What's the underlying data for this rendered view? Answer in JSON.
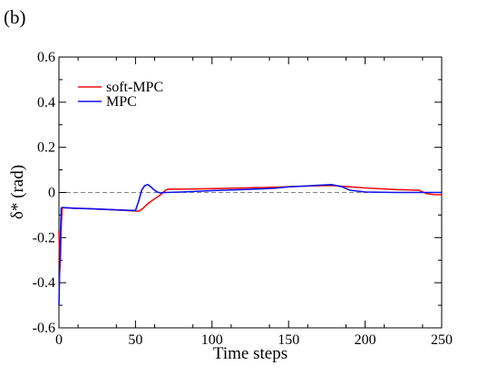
{
  "panel_label": "(b)",
  "chart_data": {
    "type": "line",
    "title": "",
    "xlabel": "Time steps",
    "ylabel": "δ* (rad)",
    "xlim": [
      0,
      250
    ],
    "ylim": [
      -0.6,
      0.6
    ],
    "xticks": [
      0,
      50,
      100,
      150,
      200,
      250
    ],
    "xtick_labels": [
      "0",
      "50",
      "100",
      "150",
      "200",
      "250"
    ],
    "yticks": [
      -0.6,
      -0.4,
      -0.2,
      0,
      0.2,
      0.4,
      0.6
    ],
    "ytick_labels": [
      "-0.6",
      "-0.4",
      "-0.2",
      "0",
      "0.2",
      "0.4",
      "0.6"
    ],
    "grid": false,
    "legend_position": "top-left",
    "reference_line": {
      "y": 0,
      "style": "dashed",
      "color": "#808080"
    },
    "series": [
      {
        "name": "soft-MPC",
        "color": "#ee1111",
        "x": [
          0,
          0.5,
          1,
          1.5,
          2,
          3,
          5,
          10,
          20,
          30,
          40,
          50,
          52,
          55,
          58,
          62,
          66,
          70,
          72,
          80,
          100,
          120,
          140,
          160,
          175,
          180,
          190,
          200,
          220,
          235,
          240,
          245,
          250
        ],
        "y": [
          -0.17,
          -0.35,
          -0.28,
          -0.15,
          -0.07,
          -0.068,
          -0.068,
          -0.07,
          -0.072,
          -0.075,
          -0.078,
          -0.082,
          -0.083,
          -0.07,
          -0.05,
          -0.03,
          -0.012,
          0.012,
          0.015,
          0.015,
          0.017,
          0.02,
          0.023,
          0.028,
          0.03,
          0.03,
          0.025,
          0.02,
          0.013,
          0.01,
          -0.005,
          -0.01,
          -0.01
        ]
      },
      {
        "name": "MPC",
        "color": "#1111ee",
        "x": [
          0,
          0.5,
          1,
          1.5,
          2,
          3,
          5,
          10,
          20,
          30,
          40,
          50,
          52,
          54,
          56,
          58,
          60,
          62,
          64,
          66,
          68,
          70,
          80,
          100,
          120,
          140,
          150,
          160,
          170,
          178,
          185,
          190,
          200,
          220,
          240,
          250
        ],
        "y": [
          -0.5,
          -0.33,
          -0.18,
          -0.07,
          -0.067,
          -0.067,
          -0.068,
          -0.07,
          -0.072,
          -0.075,
          -0.078,
          -0.08,
          -0.04,
          0.01,
          0.03,
          0.035,
          0.025,
          0.012,
          0.003,
          -0.002,
          -0.001,
          0.0,
          0.002,
          0.008,
          0.013,
          0.018,
          0.025,
          0.028,
          0.032,
          0.035,
          0.025,
          0.01,
          0.002,
          0.0,
          0.0,
          0.0
        ]
      }
    ]
  }
}
